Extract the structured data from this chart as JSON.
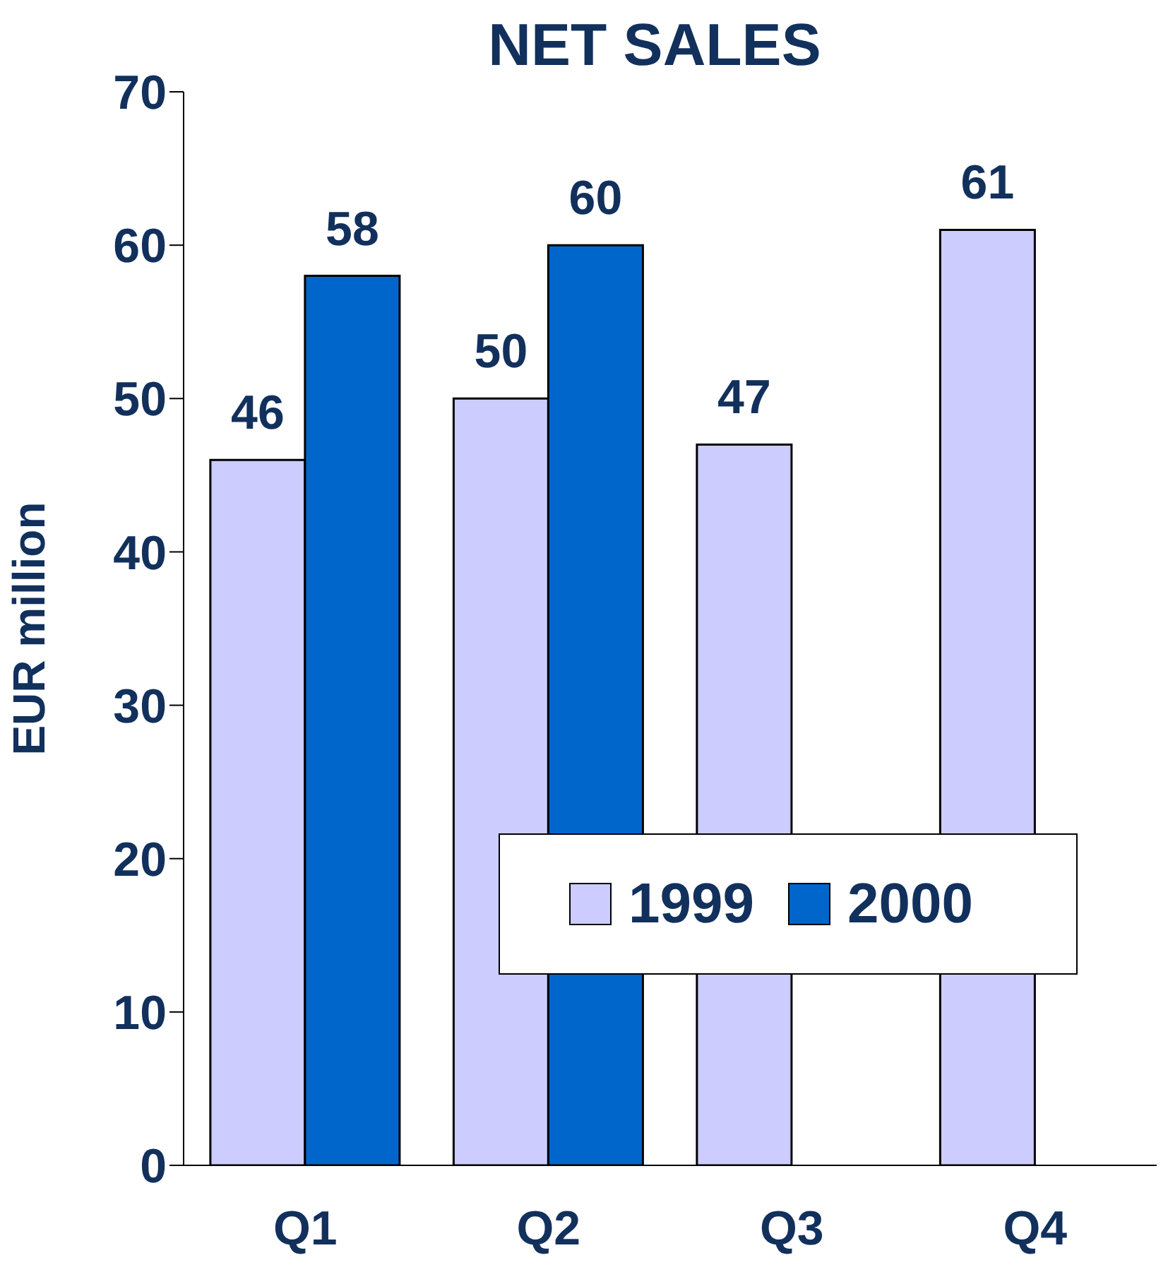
{
  "chart_data": {
    "type": "bar",
    "title": "NET SALES",
    "ylabel": "EUR million",
    "categories": [
      "Q1",
      "Q2",
      "Q3",
      "Q4"
    ],
    "series": [
      {
        "name": "1999",
        "color": "#ccccff",
        "values": [
          46,
          50,
          47,
          61
        ]
      },
      {
        "name": "2000",
        "color": "#0066cc",
        "values": [
          58,
          60,
          null,
          null
        ]
      }
    ],
    "ylim": [
      0,
      70
    ],
    "yticks": [
      0,
      10,
      20,
      30,
      40,
      50,
      60,
      70
    ],
    "legend": "bottom right",
    "data_labels": true
  }
}
